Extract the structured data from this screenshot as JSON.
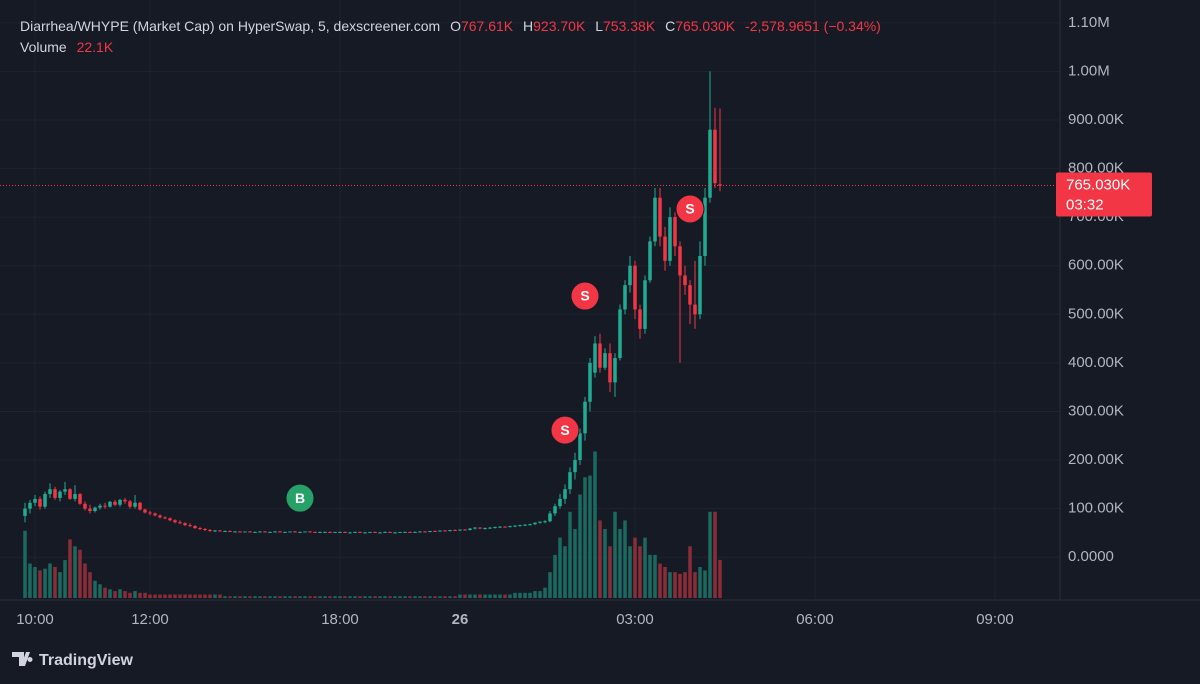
{
  "chart_data": {
    "type": "candlestick",
    "title": "Diarrhea/WHYPE (Market Cap) on HyperSwap, 5, dexscreener.com",
    "ohlc": [
      {
        "key": "O",
        "value": "767.61K"
      },
      {
        "key": "H",
        "value": "923.70K"
      },
      {
        "key": "L",
        "value": "753.38K"
      },
      {
        "key": "C",
        "value": "765.030K"
      }
    ],
    "change": "-2,578.9651 (−0.34%)",
    "volume_title": "Volume",
    "volume_label": "22.1K",
    "up_color": "#22ab94",
    "down_color": "#f23645",
    "up_volume_color": "#1b6a60",
    "down_volume_color": "#8a2d38",
    "grid": true,
    "ylim": [
      -84000,
      1147000
    ],
    "yticks": [
      {
        "value": 1100000,
        "label": "1.10M"
      },
      {
        "value": 1000000,
        "label": "1.00M"
      },
      {
        "value": 900000,
        "label": "900.00K"
      },
      {
        "value": 800000,
        "label": "800.00K"
      },
      {
        "value": 700000,
        "label": "700.00K"
      },
      {
        "value": 600000,
        "label": "600.00K"
      },
      {
        "value": 500000,
        "label": "500.00K"
      },
      {
        "value": 400000,
        "label": "400.00K"
      },
      {
        "value": 300000,
        "label": "300.00K"
      },
      {
        "value": 200000,
        "label": "200.00K"
      },
      {
        "value": 100000,
        "label": "100.00K"
      },
      {
        "value": 0,
        "label": "0.0000"
      }
    ],
    "y2lim": [
      0,
      87000
    ],
    "xlim": [
      -5,
      207
    ],
    "xticks": [
      {
        "value": 2,
        "label": "10:00"
      },
      {
        "value": 25,
        "label": "12:00"
      },
      {
        "value": 63,
        "label": "18:00"
      },
      {
        "value": 87,
        "label": "26"
      },
      {
        "value": 122,
        "label": "03:00"
      },
      {
        "value": 158,
        "label": "06:00"
      },
      {
        "value": 194,
        "label": "09:00"
      }
    ],
    "price_tag": {
      "value": 765030,
      "label": "765.030K",
      "countdown": "03:32"
    },
    "markers": [
      {
        "label": "B",
        "x": 55,
        "value": 121500,
        "color": "#26a269"
      },
      {
        "label": "S",
        "x": 108,
        "value": 261600,
        "color": "#f23645"
      },
      {
        "label": "S",
        "x": 112,
        "value": 537600,
        "color": "#f23645"
      },
      {
        "label": "S",
        "x": 133,
        "value": 716800,
        "color": "#f23645"
      }
    ],
    "candles": [
      [
        85000,
        112000,
        72000,
        100000,
        39000
      ],
      [
        100000,
        118000,
        90000,
        112000,
        20000
      ],
      [
        112000,
        128000,
        105000,
        120000,
        18000
      ],
      [
        120000,
        125000,
        98000,
        104000,
        16000
      ],
      [
        104000,
        135000,
        100000,
        130000,
        17000
      ],
      [
        130000,
        152000,
        122000,
        140000,
        20000
      ],
      [
        140000,
        145000,
        118000,
        122000,
        18000
      ],
      [
        122000,
        138000,
        115000,
        135000,
        15000
      ],
      [
        135000,
        155000,
        128000,
        140000,
        22000
      ],
      [
        140000,
        142000,
        118000,
        120000,
        34000
      ],
      [
        120000,
        148000,
        115000,
        130000,
        30000
      ],
      [
        130000,
        132000,
        108000,
        110000,
        28000
      ],
      [
        110000,
        115000,
        96000,
        100000,
        20000
      ],
      [
        100000,
        108000,
        90000,
        95000,
        15000
      ],
      [
        95000,
        104000,
        92000,
        102000,
        10000
      ],
      [
        102000,
        110000,
        98000,
        106000,
        8000
      ],
      [
        106000,
        112000,
        100000,
        104000,
        6000
      ],
      [
        104000,
        116000,
        102000,
        114000,
        5000
      ],
      [
        114000,
        118000,
        105000,
        108000,
        4000
      ],
      [
        108000,
        120000,
        104000,
        118000,
        5000
      ],
      [
        118000,
        122000,
        110000,
        115000,
        4000
      ],
      [
        115000,
        118000,
        100000,
        104000,
        3000
      ],
      [
        104000,
        128000,
        100000,
        112000,
        4000
      ],
      [
        112000,
        114000,
        96000,
        98000,
        3000
      ],
      [
        98000,
        100000,
        90000,
        92000,
        3000
      ],
      [
        92000,
        95000,
        86000,
        90000,
        2000
      ],
      [
        90000,
        92000,
        84000,
        86000,
        2000
      ],
      [
        86000,
        88000,
        80000,
        82000,
        2000
      ],
      [
        82000,
        84000,
        78000,
        80000,
        2000
      ],
      [
        80000,
        82000,
        74000,
        76000,
        2000
      ],
      [
        76000,
        78000,
        70000,
        72000,
        2000
      ],
      [
        72000,
        76000,
        68000,
        70000,
        2000
      ],
      [
        70000,
        72000,
        64000,
        66000,
        2000
      ],
      [
        66000,
        70000,
        62000,
        64000,
        2000
      ],
      [
        64000,
        66000,
        58000,
        60000,
        2000
      ],
      [
        60000,
        62000,
        56000,
        58000,
        2000
      ],
      [
        58000,
        60000,
        54000,
        56000,
        2000
      ],
      [
        56000,
        58000,
        52000,
        54000,
        2000
      ],
      [
        54000,
        56000,
        52000,
        55000,
        2000
      ],
      [
        55000,
        56000,
        53000,
        53000,
        2000
      ],
      [
        53000,
        55000,
        52000,
        54000,
        1000
      ],
      [
        54000,
        55000,
        52000,
        52000,
        1000
      ],
      [
        52000,
        54000,
        51000,
        53000,
        1000
      ],
      [
        53000,
        54000,
        52000,
        52000,
        1000
      ],
      [
        52000,
        53000,
        51000,
        53000,
        1000
      ],
      [
        53000,
        54000,
        52000,
        52000,
        1000
      ],
      [
        52000,
        53000,
        51000,
        52000,
        1000
      ],
      [
        52000,
        54000,
        51000,
        53000,
        1000
      ],
      [
        53000,
        54000,
        52000,
        52000,
        1000
      ],
      [
        52000,
        53000,
        51000,
        52000,
        1000
      ],
      [
        52000,
        54000,
        51000,
        53000,
        1000
      ],
      [
        53000,
        54000,
        52000,
        52000,
        1000
      ],
      [
        52000,
        53000,
        51000,
        52000,
        1000
      ],
      [
        52000,
        53000,
        51000,
        53000,
        1000
      ],
      [
        53000,
        54000,
        52000,
        52000,
        1000
      ],
      [
        52000,
        53000,
        51000,
        52000,
        1000
      ],
      [
        52000,
        53000,
        51000,
        53000,
        1000
      ],
      [
        53000,
        54000,
        52000,
        52000,
        1000
      ],
      [
        52000,
        53000,
        51000,
        51000,
        1000
      ],
      [
        51000,
        53000,
        50000,
        52000,
        1000
      ],
      [
        52000,
        53000,
        51000,
        52000,
        1000
      ],
      [
        52000,
        53000,
        51000,
        51000,
        1000
      ],
      [
        51000,
        52000,
        50000,
        52000,
        1000
      ],
      [
        52000,
        53000,
        51000,
        52000,
        1000
      ],
      [
        52000,
        53000,
        50000,
        51000,
        1000
      ],
      [
        51000,
        52000,
        50000,
        51000,
        1000
      ],
      [
        51000,
        53000,
        50000,
        52000,
        1000
      ],
      [
        52000,
        53000,
        51000,
        51000,
        1000
      ],
      [
        51000,
        52000,
        50000,
        51000,
        1000
      ],
      [
        51000,
        52000,
        50000,
        52000,
        1000
      ],
      [
        52000,
        53000,
        51000,
        51000,
        1000
      ],
      [
        51000,
        52000,
        50000,
        51000,
        1000
      ],
      [
        51000,
        53000,
        50000,
        52000,
        1000
      ],
      [
        52000,
        53000,
        51000,
        51000,
        1000
      ],
      [
        51000,
        52000,
        50000,
        51000,
        1000
      ],
      [
        51000,
        52000,
        50000,
        52000,
        1000
      ],
      [
        52000,
        53000,
        51000,
        52000,
        1000
      ],
      [
        52000,
        53000,
        51000,
        51000,
        1000
      ],
      [
        51000,
        53000,
        50000,
        52000,
        1000
      ],
      [
        52000,
        54000,
        51000,
        53000,
        1000
      ],
      [
        53000,
        54000,
        52000,
        52000,
        1000
      ],
      [
        52000,
        54000,
        51000,
        54000,
        1000
      ],
      [
        54000,
        55000,
        53000,
        53000,
        1000
      ],
      [
        53000,
        55000,
        52000,
        55000,
        1000
      ],
      [
        55000,
        56000,
        53000,
        54000,
        1000
      ],
      [
        54000,
        56000,
        53000,
        56000,
        1000
      ],
      [
        56000,
        57000,
        54000,
        55000,
        1000
      ],
      [
        55000,
        57000,
        54000,
        57000,
        2000
      ],
      [
        57000,
        58000,
        55000,
        56000,
        2000
      ],
      [
        56000,
        60000,
        55000,
        59000,
        2000
      ],
      [
        59000,
        62000,
        57000,
        61000,
        2000
      ],
      [
        61000,
        62000,
        58000,
        59000,
        2000
      ],
      [
        59000,
        61000,
        57000,
        60000,
        2000
      ],
      [
        60000,
        62000,
        58000,
        61000,
        2000
      ],
      [
        61000,
        63000,
        59000,
        62000,
        2000
      ],
      [
        62000,
        64000,
        60000,
        63000,
        2000
      ],
      [
        63000,
        64000,
        61000,
        62000,
        2000
      ],
      [
        62000,
        65000,
        61000,
        64000,
        2000
      ],
      [
        64000,
        66000,
        62000,
        65000,
        3000
      ],
      [
        65000,
        67000,
        63000,
        66000,
        3000
      ],
      [
        66000,
        68000,
        64000,
        67000,
        3000
      ],
      [
        67000,
        69000,
        65000,
        68000,
        3000
      ],
      [
        68000,
        72000,
        66000,
        71000,
        4000
      ],
      [
        71000,
        74000,
        69000,
        73000,
        4000
      ],
      [
        73000,
        76000,
        70000,
        74000,
        6000
      ],
      [
        74000,
        95000,
        72000,
        90000,
        15000
      ],
      [
        90000,
        110000,
        85000,
        105000,
        25000
      ],
      [
        105000,
        130000,
        100000,
        120000,
        35000
      ],
      [
        120000,
        150000,
        110000,
        140000,
        30000
      ],
      [
        140000,
        185000,
        130000,
        175000,
        50000
      ],
      [
        175000,
        215000,
        160000,
        200000,
        40000
      ],
      [
        200000,
        265000,
        190000,
        255000,
        60000
      ],
      [
        255000,
        330000,
        240000,
        320000,
        70000
      ],
      [
        320000,
        410000,
        300000,
        400000,
        71000
      ],
      [
        380000,
        455000,
        370000,
        440000,
        85000
      ],
      [
        440000,
        460000,
        380000,
        390000,
        45000
      ],
      [
        390000,
        430000,
        385000,
        420000,
        40000
      ],
      [
        420000,
        440000,
        340000,
        360000,
        30000
      ],
      [
        360000,
        420000,
        330000,
        410000,
        50000
      ],
      [
        410000,
        520000,
        405000,
        510000,
        40000
      ],
      [
        510000,
        570000,
        500000,
        560000,
        45000
      ],
      [
        560000,
        620000,
        545000,
        600000,
        30000
      ],
      [
        600000,
        610000,
        490000,
        510000,
        35000
      ],
      [
        510000,
        520000,
        450000,
        470000,
        30000
      ],
      [
        470000,
        580000,
        460000,
        570000,
        35000
      ],
      [
        570000,
        660000,
        565000,
        650000,
        25000
      ],
      [
        650000,
        760000,
        640000,
        740000,
        25000
      ],
      [
        740000,
        760000,
        640000,
        660000,
        20000
      ],
      [
        660000,
        680000,
        590000,
        610000,
        18000
      ],
      [
        610000,
        720000,
        600000,
        700000,
        15000
      ],
      [
        700000,
        710000,
        620000,
        640000,
        15000
      ],
      [
        640000,
        650000,
        400000,
        580000,
        14000
      ],
      [
        580000,
        600000,
        540000,
        560000,
        15000
      ],
      [
        560000,
        570000,
        480000,
        520000,
        30000
      ],
      [
        520000,
        610000,
        470000,
        500000,
        15000
      ],
      [
        500000,
        650000,
        490000,
        620000,
        18000
      ],
      [
        620000,
        760000,
        600000,
        740000,
        16000
      ],
      [
        740000,
        1000000,
        730000,
        880000,
        50000
      ],
      [
        880000,
        925000,
        760000,
        770000,
        50000
      ],
      [
        767610,
        923700,
        753380,
        765030,
        22100
      ]
    ]
  },
  "branding": "TradingView"
}
